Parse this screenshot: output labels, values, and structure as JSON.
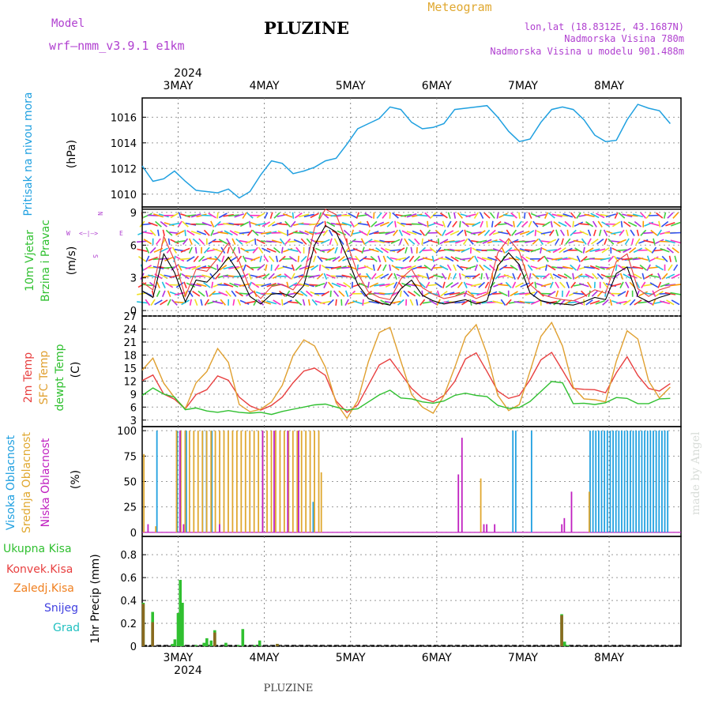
{
  "header": {
    "model_label": "Model",
    "model_name": "wrf—nmm_v3.9.1  e1km",
    "station": "PLUZINE",
    "meteogram": "Meteogram",
    "lonlat": "lon,lat (18.8312E, 43.1687N)",
    "elevation": "Nadmorska Visina 780m",
    "model_elevation": "Nadmorska Visina u modelu 901.488m",
    "year": "2024",
    "footer": "PLUZINE",
    "watermark": "made by Angel"
  },
  "colors": {
    "pressure": "#1fa0e0",
    "t2m": "#e84040",
    "sfc": "#e0a030",
    "dewpt": "#30c030",
    "high_cloud": "#20a0e0",
    "mid_cloud": "#e0a830",
    "low_cloud": "#c020c0",
    "total_precip": "#30c030",
    "conv_precip": "#e84040",
    "frozen_precip": "#f08020",
    "snow": "#4040e0",
    "hail": "#20c0c0",
    "model": "#b040d0"
  },
  "chart_data": [
    {
      "id": "pressure",
      "type": "line",
      "ylabel": "(hPa)",
      "side_label": [
        "Pritisak na nivou mora"
      ],
      "yticks": [
        1010,
        1012,
        1014,
        1016
      ],
      "ylim": [
        1009,
        1017.5
      ],
      "x_days": [
        "3MAY",
        "4MAY",
        "5MAY",
        "6MAY",
        "7MAY",
        "8MAY"
      ],
      "hours": [
        0,
        3,
        6,
        9,
        12,
        15,
        18,
        21,
        24,
        27,
        30,
        33,
        36,
        39,
        42,
        45,
        48,
        51,
        54,
        57,
        60,
        63,
        66,
        69,
        72,
        75,
        78,
        81,
        84,
        87,
        90,
        93,
        96,
        99,
        102,
        105,
        108,
        111,
        114,
        117,
        120,
        123,
        126,
        129,
        132,
        135,
        138,
        141,
        144,
        147
      ],
      "values": [
        1012.2,
        1011.0,
        1011.2,
        1011.8,
        1011.0,
        1010.3,
        1010.2,
        1010.1,
        1010.4,
        1009.7,
        1010.2,
        1011.5,
        1012.6,
        1012.4,
        1011.6,
        1011.8,
        1012.1,
        1012.6,
        1012.8,
        1013.9,
        1015.1,
        1015.5,
        1015.9,
        1016.8,
        1016.6,
        1015.6,
        1015.1,
        1015.2,
        1015.5,
        1016.6,
        1016.7,
        1016.8,
        1016.9,
        1016.0,
        1014.9,
        1014.1,
        1014.3,
        1015.6,
        1016.6,
        1016.8,
        1016.6,
        1015.8,
        1014.6,
        1014.1,
        1014.2,
        1015.8,
        1017.0,
        1016.7,
        1016.5,
        1015.5
      ]
    },
    {
      "id": "wind",
      "type": "line",
      "ylabel": "(m/s)",
      "side_label": [
        "10m  Vjetar",
        "Brzina i Pravac"
      ],
      "compass": {
        "n": "N",
        "s": "S",
        "w": "W",
        "e": "E"
      },
      "yticks": [
        0,
        3,
        6,
        9
      ],
      "ylim": [
        -0.5,
        9.5
      ],
      "hours": [
        0,
        3,
        6,
        9,
        12,
        15,
        18,
        21,
        24,
        27,
        30,
        33,
        36,
        39,
        42,
        45,
        48,
        51,
        54,
        57,
        60,
        63,
        66,
        69,
        72,
        75,
        78,
        81,
        84,
        87,
        90,
        93,
        96,
        99,
        102,
        105,
        108,
        111,
        114,
        117,
        120,
        123,
        126,
        129,
        132,
        135,
        138,
        141,
        144,
        147
      ],
      "values": [
        1.8,
        1.2,
        5.2,
        3.5,
        0.8,
        2.8,
        2.6,
        3.6,
        4.9,
        3.4,
        1.3,
        0.6,
        1.5,
        1.6,
        1.2,
        2.3,
        6.0,
        7.8,
        7.2,
        4.9,
        2.4,
        1.1,
        0.7,
        0.5,
        2.0,
        2.8,
        1.4,
        0.9,
        0.6,
        0.8,
        1.0,
        0.6,
        0.9,
        4.1,
        5.3,
        4.2,
        1.6,
        0.9,
        0.7,
        0.6,
        0.5,
        0.8,
        1.2,
        1.0,
        3.4,
        4.0,
        1.3,
        0.8,
        1.2,
        1.5
      ],
      "gust": [
        2.6,
        1.9,
        6.8,
        4.6,
        1.3,
        3.8,
        3.6,
        4.8,
        6.2,
        4.5,
        2.0,
        1.1,
        2.2,
        2.4,
        1.9,
        3.2,
        7.6,
        9.3,
        8.8,
        6.2,
        3.4,
        1.7,
        1.2,
        1.0,
        2.9,
        3.8,
        2.1,
        1.5,
        1.1,
        1.3,
        1.6,
        1.1,
        1.5,
        5.3,
        6.6,
        5.4,
        2.4,
        1.5,
        1.2,
        1.0,
        0.9,
        1.3,
        1.9,
        1.6,
        4.5,
        5.2,
        2.0,
        1.3,
        1.9,
        2.2
      ]
    },
    {
      "id": "temperature",
      "type": "line",
      "ylabel": "(C)",
      "side_label": [
        "2m  Temp",
        "SFC  Temp",
        "dewpt  Temp"
      ],
      "yticks": [
        3,
        6,
        9,
        12,
        15,
        18,
        21,
        24,
        27
      ],
      "ylim": [
        1.5,
        27
      ],
      "hours": [
        0,
        3,
        6,
        9,
        12,
        15,
        18,
        21,
        24,
        27,
        30,
        33,
        36,
        39,
        42,
        45,
        48,
        51,
        54,
        57,
        60,
        63,
        66,
        69,
        72,
        75,
        78,
        81,
        84,
        87,
        90,
        93,
        96,
        99,
        102,
        105,
        108,
        111,
        114,
        117,
        120,
        123,
        126,
        129,
        132,
        135,
        138,
        141,
        144,
        147
      ],
      "series": [
        {
          "name": "2m  Temp",
          "color": "#e84040",
          "values": [
            12.1,
            13.4,
            9.0,
            7.8,
            5.6,
            8.9,
            10.0,
            13.2,
            12.2,
            8.3,
            6.3,
            5.3,
            6.4,
            8.3,
            11.6,
            14.3,
            15.0,
            13.3,
            7.4,
            4.8,
            6.5,
            11.1,
            15.7,
            17.1,
            13.7,
            10.3,
            8.1,
            7.2,
            8.7,
            11.9,
            17.1,
            18.5,
            14.2,
            9.7,
            8.0,
            8.7,
            12.3,
            16.9,
            18.6,
            14.5,
            10.3,
            10.1,
            10.0,
            9.3,
            13.9,
            17.6,
            13.3,
            10.3,
            9.7,
            11.4
          ]
        },
        {
          "name": "SFC  Temp",
          "color": "#e0a030",
          "values": [
            14.5,
            17.3,
            11.5,
            8.2,
            5.6,
            11.6,
            14.2,
            19.5,
            16.3,
            6.6,
            4.9,
            5.5,
            7.2,
            11.0,
            17.9,
            21.5,
            20.1,
            15.2,
            7.0,
            3.4,
            7.5,
            16.5,
            23.2,
            24.4,
            16.6,
            8.9,
            6.0,
            4.6,
            8.6,
            15.1,
            22.2,
            25.0,
            18.2,
            8.7,
            5.2,
            6.6,
            14.3,
            22.3,
            25.5,
            20.1,
            10.6,
            7.9,
            7.7,
            7.2,
            16.6,
            23.6,
            21.7,
            12.0,
            8.1,
            10.6
          ]
        },
        {
          "name": "dewpt  Temp",
          "color": "#30c030",
          "values": [
            8.7,
            10.4,
            9.0,
            8.3,
            5.4,
            5.8,
            5.1,
            4.8,
            5.2,
            4.8,
            4.6,
            4.8,
            4.3,
            5.0,
            5.5,
            6.0,
            6.5,
            6.7,
            6.0,
            5.3,
            5.6,
            7.2,
            8.8,
            9.9,
            8.1,
            7.9,
            7.2,
            6.9,
            7.4,
            8.7,
            9.2,
            8.7,
            8.4,
            6.4,
            5.7,
            5.9,
            7.3,
            9.6,
            11.9,
            11.6,
            6.8,
            6.9,
            6.6,
            7.0,
            8.2,
            8.0,
            6.8,
            6.8,
            7.9,
            8.0
          ]
        }
      ]
    },
    {
      "id": "clouds",
      "type": "bar",
      "ylabel": "(%)",
      "side_label": [
        "Visoka Oblacnost",
        "Srednja Oblacnost",
        "Niska  Oblacnost"
      ],
      "yticks": [
        0,
        25,
        50,
        75,
        100
      ],
      "ylim": [
        -4,
        104
      ],
      "series": [
        {
          "name": "Visoka Oblacnost",
          "color": "#20a0e0",
          "points": [
            [
              4.1,
              100
            ],
            [
              9.8,
              100
            ],
            [
              12.3,
              100
            ],
            [
              16.8,
              100
            ],
            [
              17.9,
              100
            ],
            [
              19.4,
              100
            ],
            [
              47.6,
              30
            ],
            [
              103.2,
              100
            ],
            [
              104.0,
              100
            ],
            [
              108.4,
              100
            ],
            [
              124.7,
              100
            ],
            [
              125.5,
              100
            ],
            [
              126.3,
              100
            ],
            [
              127.1,
              100
            ],
            [
              127.9,
              100
            ],
            [
              128.7,
              100
            ],
            [
              129.5,
              100
            ],
            [
              130.3,
              100
            ],
            [
              131.1,
              100
            ],
            [
              131.9,
              100
            ],
            [
              132.7,
              100
            ],
            [
              133.5,
              100
            ],
            [
              134.3,
              100
            ],
            [
              135.1,
              100
            ],
            [
              135.9,
              100
            ],
            [
              136.7,
              100
            ],
            [
              137.5,
              100
            ],
            [
              138.3,
              100
            ],
            [
              139.1,
              100
            ],
            [
              139.9,
              100
            ],
            [
              140.7,
              100
            ],
            [
              141.5,
              100
            ],
            [
              142.3,
              100
            ],
            [
              143.1,
              100
            ],
            [
              143.9,
              100
            ],
            [
              144.7,
              100
            ],
            [
              145.5,
              100
            ],
            [
              146.3,
              100
            ]
          ]
        },
        {
          "name": "Srednja Oblacnost",
          "color": "#e0a830",
          "points": [
            [
              0.2,
              77
            ],
            [
              3.5,
              6
            ],
            [
              9.3,
              100
            ],
            [
              10.5,
              100
            ],
            [
              11.7,
              100
            ],
            [
              12.9,
              100
            ],
            [
              14.1,
              100
            ],
            [
              15.3,
              100
            ],
            [
              16.5,
              100
            ],
            [
              17.7,
              100
            ],
            [
              18.9,
              100
            ],
            [
              20.1,
              100
            ],
            [
              21.3,
              100
            ],
            [
              22.5,
              100
            ],
            [
              23.7,
              100
            ],
            [
              24.9,
              100
            ],
            [
              26.1,
              100
            ],
            [
              27.3,
              100
            ],
            [
              28.5,
              100
            ],
            [
              29.7,
              100
            ],
            [
              30.9,
              100
            ],
            [
              32.1,
              100
            ],
            [
              33.3,
              100
            ],
            [
              34.5,
              100
            ],
            [
              35.7,
              100
            ],
            [
              36.9,
              100
            ],
            [
              38.1,
              100
            ],
            [
              39.3,
              100
            ],
            [
              40.5,
              100
            ],
            [
              41.7,
              100
            ],
            [
              42.9,
              100
            ],
            [
              44.1,
              100
            ],
            [
              45.3,
              100
            ],
            [
              46.5,
              100
            ],
            [
              47.7,
              100
            ],
            [
              48.9,
              100
            ],
            [
              49.6,
              59
            ],
            [
              94.0,
              53
            ],
            [
              124.2,
              40
            ]
          ]
        },
        {
          "name": "Niska  Oblacnost",
          "color": "#c020c0",
          "points": [
            [
              1.1,
              8
            ],
            [
              10.0,
              100
            ],
            [
              11.0,
              8
            ],
            [
              21.0,
              8
            ],
            [
              33.0,
              100
            ],
            [
              36.2,
              100
            ],
            [
              40.0,
              100
            ],
            [
              43.0,
              100
            ],
            [
              87.5,
              57
            ],
            [
              88.5,
              93
            ],
            [
              94.6,
              8
            ],
            [
              95.4,
              8
            ],
            [
              97.6,
              8
            ],
            [
              116.3,
              8
            ],
            [
              117.0,
              14
            ],
            [
              119.0,
              40
            ]
          ]
        }
      ]
    },
    {
      "id": "precip",
      "type": "bar",
      "ylabel": "1hr Precip (mm)",
      "yticks": [
        0,
        0.2,
        0.4,
        0.6,
        0.8
      ],
      "ylim": [
        0,
        0.96
      ],
      "legend": [
        "Ukupna  Kisa",
        "Konvek.Kisa",
        "Zaledj.Kisa",
        "Snijeg",
        "Grad"
      ],
      "series": [
        {
          "name": "Ukupna  Kisa",
          "points": [
            [
              0.3,
              0.38
            ],
            [
              2.9,
              0.3
            ],
            [
              8.4,
              0.02
            ],
            [
              9.1,
              0.06
            ],
            [
              10.0,
              0.29
            ],
            [
              10.6,
              0.58
            ],
            [
              11.2,
              0.38
            ],
            [
              15.0,
              0.01
            ],
            [
              17.2,
              0.03
            ],
            [
              18.0,
              0.07
            ],
            [
              19.2,
              0.05
            ],
            [
              20.2,
              0.14
            ],
            [
              23.3,
              0.03
            ],
            [
              26.8,
              0.01
            ],
            [
              28.0,
              0.15
            ],
            [
              31.3,
              0.01
            ],
            [
              32.7,
              0.05
            ],
            [
              37.6,
              0.02
            ],
            [
              116.8,
              0.28
            ],
            [
              117.6,
              0.04
            ],
            [
              118.5,
              0.01
            ]
          ]
        },
        {
          "name": "Konvek.Kisa",
          "points": [
            [
              0.3,
              0.37
            ],
            [
              2.9,
              0.21
            ],
            [
              20.2,
              0.12
            ],
            [
              116.8,
              0.27
            ],
            [
              37.6,
              0.02
            ]
          ]
        }
      ]
    }
  ]
}
